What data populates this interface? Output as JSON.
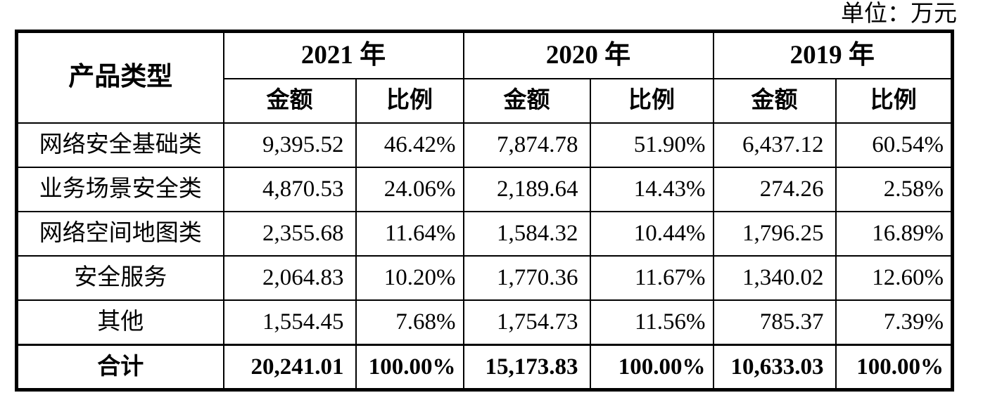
{
  "unit_label": "单位：万元",
  "table": {
    "header": {
      "product_type": "产品类型",
      "years": [
        "2021 年",
        "2020 年",
        "2019 年"
      ],
      "amount": "金额",
      "ratio": "比例"
    },
    "rows": [
      {
        "cells": [
          "网络安全基础类",
          "9,395.52",
          "46.42%",
          "7,874.78",
          "51.90%",
          "6,437.12",
          "60.54%"
        ]
      },
      {
        "cells": [
          "业务场景安全类",
          "4,870.53",
          "24.06%",
          "2,189.64",
          "14.43%",
          "274.26",
          "2.58%"
        ]
      },
      {
        "cells": [
          "网络空间地图类",
          "2,355.68",
          "11.64%",
          "1,584.32",
          "10.44%",
          "1,796.25",
          "16.89%"
        ]
      },
      {
        "cells": [
          "安全服务",
          "2,064.83",
          "10.20%",
          "1,770.36",
          "11.67%",
          "1,340.02",
          "12.60%"
        ]
      },
      {
        "cells": [
          "其他",
          "1,554.45",
          "7.68%",
          "1,754.73",
          "11.56%",
          "785.37",
          "7.39%"
        ]
      }
    ],
    "total": {
      "cells": [
        "合计",
        "20,241.01",
        "100.00%",
        "15,173.83",
        "100.00%",
        "10,633.03",
        "100.00%"
      ]
    }
  }
}
